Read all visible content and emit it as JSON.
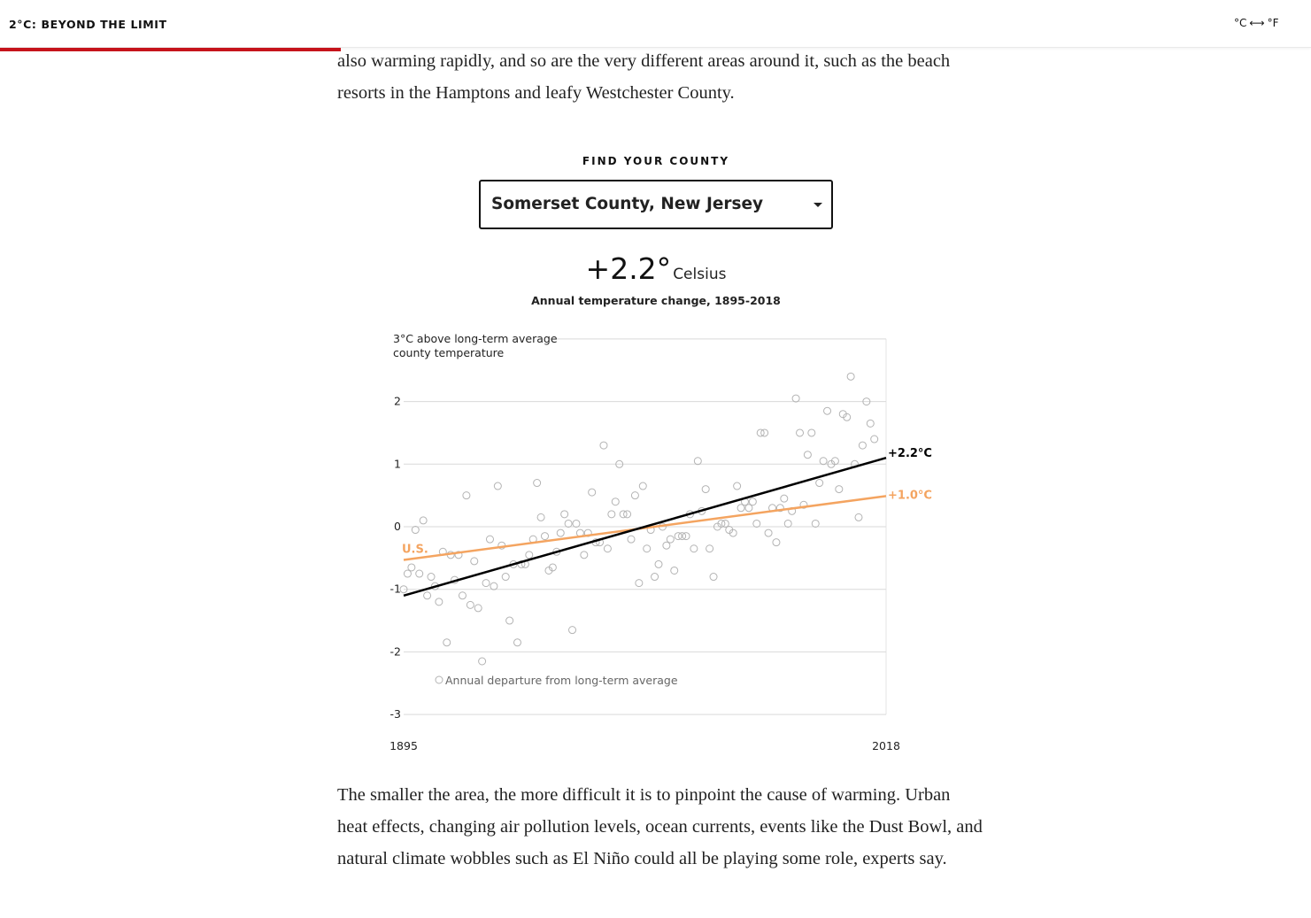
{
  "header": {
    "title": "2°C: BEYOND THE LIMIT",
    "unit_toggle": {
      "left": "°C",
      "right": "°F",
      "arrow_icon": "double-arrow-icon"
    },
    "progress_bar_color": "#c6131b"
  },
  "article": {
    "paragraph_top": "also warming rapidly, and so are the very different areas around it, such as the beach resorts in the Hamptons and leafy Westchester County.",
    "paragraph_bottom": "The smaller the area, the more difficult it is to pinpoint the cause of warming. Urban heat effects, changing air pollution levels, ocean currents, events like the Dust Bowl, and natural climate wobbles such as El Niño could all be playing some role, experts say."
  },
  "county_picker": {
    "label": "FIND YOUR COUNTY",
    "selected": "Somerset County, New Jersey"
  },
  "summary": {
    "value": "+2.2°",
    "unit": "Celsius",
    "title": "Annual temperature change, 1895-2018"
  },
  "chart_data": {
    "type": "scatter",
    "title": "Annual temperature change, 1895-2018",
    "x_range": [
      1895,
      2018
    ],
    "x_ticks": [
      "1895",
      "2018"
    ],
    "ylim": [
      -3,
      3
    ],
    "y_ticks": [
      "2",
      "1",
      "0",
      "-1",
      "-2",
      "-3"
    ],
    "top_note": [
      "3°C above long-term average",
      "county temperature"
    ],
    "grid": true,
    "legend": {
      "label": "Annual departure from long-term average",
      "placement": "bottom-left"
    },
    "colors": {
      "county": "#000000",
      "us": "#f4a460",
      "points": "#b3b3b3"
    },
    "trend_lines": [
      {
        "name": "county",
        "label": "+2.2°C",
        "x": [
          1895,
          2018
        ],
        "y": [
          -1.1,
          1.1
        ]
      },
      {
        "name": "U.S.",
        "label": "+1.0°C",
        "inline_label": "U.S.",
        "x": [
          1895,
          2018
        ],
        "y": [
          -0.53,
          0.49
        ]
      }
    ],
    "points": [
      [
        1895,
        -1.0
      ],
      [
        1896,
        -0.75
      ],
      [
        1897,
        -0.65
      ],
      [
        1898,
        -0.05
      ],
      [
        1899,
        -0.75
      ],
      [
        1900,
        0.1
      ],
      [
        1901,
        -1.1
      ],
      [
        1902,
        -0.8
      ],
      [
        1903,
        -0.95
      ],
      [
        1904,
        -1.2
      ],
      [
        1905,
        -0.4
      ],
      [
        1906,
        -1.85
      ],
      [
        1907,
        -0.45
      ],
      [
        1908,
        -0.85
      ],
      [
        1909,
        -0.45
      ],
      [
        1910,
        -1.1
      ],
      [
        1911,
        0.5
      ],
      [
        1912,
        -1.25
      ],
      [
        1913,
        -0.55
      ],
      [
        1914,
        -1.3
      ],
      [
        1915,
        -2.15
      ],
      [
        1916,
        -0.9
      ],
      [
        1917,
        -0.2
      ],
      [
        1918,
        -0.95
      ],
      [
        1919,
        0.65
      ],
      [
        1920,
        -0.3
      ],
      [
        1921,
        -0.8
      ],
      [
        1922,
        -1.5
      ],
      [
        1923,
        -0.6
      ],
      [
        1924,
        -1.85
      ],
      [
        1925,
        -0.6
      ],
      [
        1926,
        -0.6
      ],
      [
        1927,
        -0.45
      ],
      [
        1928,
        -0.2
      ],
      [
        1929,
        0.7
      ],
      [
        1930,
        0.15
      ],
      [
        1931,
        -0.15
      ],
      [
        1932,
        -0.7
      ],
      [
        1933,
        -0.65
      ],
      [
        1934,
        -0.4
      ],
      [
        1935,
        -0.1
      ],
      [
        1936,
        0.2
      ],
      [
        1937,
        0.05
      ],
      [
        1938,
        -1.65
      ],
      [
        1939,
        0.05
      ],
      [
        1940,
        -0.1
      ],
      [
        1941,
        -0.45
      ],
      [
        1942,
        -0.1
      ],
      [
        1943,
        0.55
      ],
      [
        1944,
        -0.25
      ],
      [
        1945,
        -0.25
      ],
      [
        1946,
        1.3
      ],
      [
        1947,
        -0.35
      ],
      [
        1948,
        0.2
      ],
      [
        1949,
        0.4
      ],
      [
        1950,
        1.0
      ],
      [
        1951,
        0.2
      ],
      [
        1952,
        0.2
      ],
      [
        1953,
        -0.2
      ],
      [
        1954,
        0.5
      ],
      [
        1955,
        -0.9
      ],
      [
        1956,
        0.65
      ],
      [
        1957,
        -0.35
      ],
      [
        1958,
        -0.05
      ],
      [
        1959,
        -0.8
      ],
      [
        1960,
        -0.6
      ],
      [
        1961,
        0.0
      ],
      [
        1962,
        -0.3
      ],
      [
        1963,
        -0.2
      ],
      [
        1964,
        -0.7
      ],
      [
        1965,
        -0.15
      ],
      [
        1966,
        -0.15
      ],
      [
        1967,
        -0.15
      ],
      [
        1968,
        0.2
      ],
      [
        1969,
        -0.35
      ],
      [
        1970,
        1.05
      ],
      [
        1971,
        0.25
      ],
      [
        1972,
        0.6
      ],
      [
        1973,
        -0.35
      ],
      [
        1974,
        -0.8
      ],
      [
        1975,
        0.0
      ],
      [
        1976,
        0.05
      ],
      [
        1977,
        0.05
      ],
      [
        1978,
        -0.05
      ],
      [
        1979,
        -0.1
      ],
      [
        1980,
        0.65
      ],
      [
        1981,
        0.3
      ],
      [
        1982,
        0.4
      ],
      [
        1983,
        0.3
      ],
      [
        1984,
        0.4
      ],
      [
        1985,
        0.05
      ],
      [
        1986,
        1.5
      ],
      [
        1987,
        1.5
      ],
      [
        1988,
        -0.1
      ],
      [
        1989,
        0.3
      ],
      [
        1990,
        -0.25
      ],
      [
        1991,
        0.3
      ],
      [
        1992,
        0.45
      ],
      [
        1993,
        0.05
      ],
      [
        1994,
        0.25
      ],
      [
        1995,
        2.05
      ],
      [
        1996,
        1.5
      ],
      [
        1997,
        0.35
      ],
      [
        1998,
        1.15
      ],
      [
        1999,
        1.5
      ],
      [
        2000,
        0.05
      ],
      [
        2001,
        0.7
      ],
      [
        2002,
        1.05
      ],
      [
        2003,
        1.85
      ],
      [
        2004,
        1.0
      ],
      [
        2005,
        1.05
      ],
      [
        2006,
        0.6
      ],
      [
        2007,
        1.8
      ],
      [
        2008,
        1.75
      ],
      [
        2009,
        2.4
      ],
      [
        2010,
        1.0
      ],
      [
        2011,
        0.15
      ],
      [
        2012,
        1.3
      ],
      [
        2013,
        2.0
      ],
      [
        2014,
        1.65
      ],
      [
        2015,
        1.4
      ]
    ]
  }
}
